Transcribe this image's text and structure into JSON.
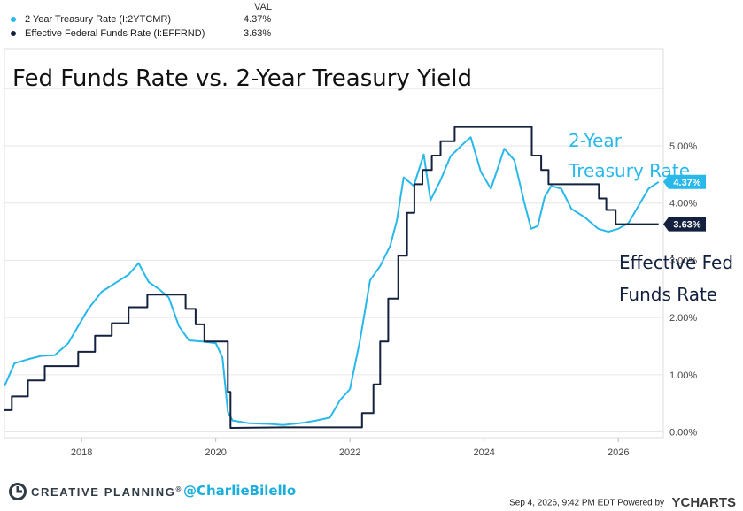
{
  "legend": {
    "val_header": "VAL",
    "items": [
      {
        "name": "2 Year Treasury Rate (I:2YTCMR)",
        "value": "4.37%",
        "color": "#29b8ea"
      },
      {
        "name": "Effective Federal Funds Rate (I:EFFRND)",
        "value": "3.63%",
        "color": "#13213f"
      }
    ]
  },
  "chart_data": {
    "type": "line",
    "title": "Fed Funds Rate vs. 2-Year Treasury Yield",
    "xlabel": "",
    "ylabel": "",
    "xlim": [
      2016.85,
      2026.67
    ],
    "ylim": [
      -0.1,
      6.7
    ],
    "x_ticks": [
      "2018",
      "2020",
      "2022",
      "2024",
      "2026"
    ],
    "y_ticks": [
      "0.00%",
      "1.00%",
      "2.00%",
      "3.00%",
      "4.00%",
      "5.00%"
    ],
    "grid": true,
    "annotations": [
      {
        "text": "2-Year",
        "series": "2 Year Treasury Rate"
      },
      {
        "text": "Treasury Rate",
        "series": "2 Year Treasury Rate"
      },
      {
        "text": "Effective Fed",
        "series": "Effective Federal Funds Rate"
      },
      {
        "text": "Funds Rate",
        "series": "Effective Federal Funds Rate"
      }
    ],
    "end_labels": [
      {
        "text": "4.37%",
        "value": 4.37,
        "color": "#29b8ea"
      },
      {
        "text": "3.63%",
        "value": 3.63,
        "color": "#13213f"
      }
    ],
    "series": [
      {
        "name": "2 Year Treasury Rate",
        "color": "#29b8ea",
        "points": [
          [
            2016.85,
            0.8
          ],
          [
            2017.0,
            1.2
          ],
          [
            2017.2,
            1.27
          ],
          [
            2017.4,
            1.33
          ],
          [
            2017.6,
            1.34
          ],
          [
            2017.8,
            1.55
          ],
          [
            2017.95,
            1.85
          ],
          [
            2018.1,
            2.15
          ],
          [
            2018.3,
            2.45
          ],
          [
            2018.5,
            2.6
          ],
          [
            2018.7,
            2.75
          ],
          [
            2018.85,
            2.95
          ],
          [
            2019.0,
            2.62
          ],
          [
            2019.15,
            2.5
          ],
          [
            2019.3,
            2.35
          ],
          [
            2019.45,
            1.85
          ],
          [
            2019.6,
            1.6
          ],
          [
            2019.8,
            1.58
          ],
          [
            2020.0,
            1.55
          ],
          [
            2020.1,
            1.3
          ],
          [
            2020.18,
            0.35
          ],
          [
            2020.25,
            0.2
          ],
          [
            2020.5,
            0.15
          ],
          [
            2020.8,
            0.14
          ],
          [
            2021.0,
            0.12
          ],
          [
            2021.3,
            0.16
          ],
          [
            2021.5,
            0.2
          ],
          [
            2021.7,
            0.25
          ],
          [
            2021.85,
            0.55
          ],
          [
            2022.0,
            0.75
          ],
          [
            2022.15,
            1.6
          ],
          [
            2022.3,
            2.65
          ],
          [
            2022.45,
            2.9
          ],
          [
            2022.6,
            3.25
          ],
          [
            2022.7,
            3.7
          ],
          [
            2022.8,
            4.45
          ],
          [
            2022.95,
            4.3
          ],
          [
            2023.1,
            4.85
          ],
          [
            2023.2,
            4.05
          ],
          [
            2023.35,
            4.4
          ],
          [
            2023.5,
            4.82
          ],
          [
            2023.7,
            5.05
          ],
          [
            2023.8,
            5.15
          ],
          [
            2023.95,
            4.55
          ],
          [
            2024.1,
            4.25
          ],
          [
            2024.2,
            4.6
          ],
          [
            2024.3,
            4.95
          ],
          [
            2024.45,
            4.75
          ],
          [
            2024.6,
            4.0
          ],
          [
            2024.7,
            3.55
          ],
          [
            2024.8,
            3.6
          ],
          [
            2024.9,
            4.1
          ],
          [
            2025.0,
            4.3
          ],
          [
            2025.15,
            4.25
          ],
          [
            2025.3,
            3.9
          ],
          [
            2025.5,
            3.75
          ],
          [
            2025.7,
            3.55
          ],
          [
            2025.85,
            3.5
          ],
          [
            2026.0,
            3.55
          ],
          [
            2026.15,
            3.65
          ],
          [
            2026.3,
            3.95
          ],
          [
            2026.45,
            4.25
          ],
          [
            2026.6,
            4.37
          ]
        ]
      },
      {
        "name": "Effective Federal Funds Rate",
        "color": "#13213f",
        "points": [
          [
            2016.85,
            0.38
          ],
          [
            2016.96,
            0.38
          ],
          [
            2016.96,
            0.62
          ],
          [
            2017.2,
            0.62
          ],
          [
            2017.2,
            0.9
          ],
          [
            2017.45,
            0.9
          ],
          [
            2017.45,
            1.15
          ],
          [
            2017.95,
            1.15
          ],
          [
            2017.95,
            1.4
          ],
          [
            2018.2,
            1.4
          ],
          [
            2018.2,
            1.68
          ],
          [
            2018.45,
            1.68
          ],
          [
            2018.45,
            1.9
          ],
          [
            2018.7,
            1.9
          ],
          [
            2018.7,
            2.18
          ],
          [
            2018.98,
            2.18
          ],
          [
            2018.98,
            2.4
          ],
          [
            2019.55,
            2.4
          ],
          [
            2019.55,
            2.15
          ],
          [
            2019.7,
            2.15
          ],
          [
            2019.7,
            1.88
          ],
          [
            2019.83,
            1.88
          ],
          [
            2019.83,
            1.58
          ],
          [
            2020.18,
            1.58
          ],
          [
            2020.18,
            0.7
          ],
          [
            2020.22,
            0.7
          ],
          [
            2020.22,
            0.07
          ],
          [
            2021.0,
            0.08
          ],
          [
            2022.18,
            0.08
          ],
          [
            2022.18,
            0.33
          ],
          [
            2022.35,
            0.33
          ],
          [
            2022.35,
            0.83
          ],
          [
            2022.45,
            0.83
          ],
          [
            2022.45,
            1.58
          ],
          [
            2022.57,
            1.58
          ],
          [
            2022.57,
            2.33
          ],
          [
            2022.72,
            2.33
          ],
          [
            2022.72,
            3.08
          ],
          [
            2022.85,
            3.08
          ],
          [
            2022.85,
            3.83
          ],
          [
            2022.96,
            3.83
          ],
          [
            2022.96,
            4.33
          ],
          [
            2023.08,
            4.33
          ],
          [
            2023.08,
            4.58
          ],
          [
            2023.22,
            4.58
          ],
          [
            2023.22,
            4.83
          ],
          [
            2023.35,
            4.83
          ],
          [
            2023.35,
            5.08
          ],
          [
            2023.56,
            5.08
          ],
          [
            2023.56,
            5.33
          ],
          [
            2024.71,
            5.33
          ],
          [
            2024.71,
            4.83
          ],
          [
            2024.85,
            4.83
          ],
          [
            2024.85,
            4.58
          ],
          [
            2024.96,
            4.58
          ],
          [
            2024.96,
            4.33
          ],
          [
            2025.71,
            4.33
          ],
          [
            2025.71,
            4.08
          ],
          [
            2025.82,
            4.08
          ],
          [
            2025.82,
            3.88
          ],
          [
            2025.96,
            3.88
          ],
          [
            2025.96,
            3.63
          ],
          [
            2026.6,
            3.63
          ]
        ]
      }
    ]
  },
  "footer": {
    "brand": "CREATIVE PLANNING",
    "registered": "®",
    "handle": "@CharlieBilello",
    "timestamp": "Sep 4, 2026, 9:42 PM EDT Powered by",
    "provider": "YCHARTS"
  }
}
